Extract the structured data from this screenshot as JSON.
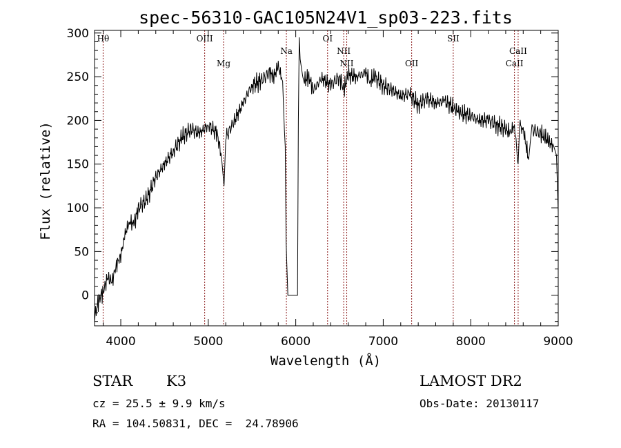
{
  "chart_data": {
    "type": "line",
    "title": "spec-56310-GAC105N24V1_sp03-223.fits",
    "xlabel": "Wavelength (Å)",
    "ylabel": "Flux (relative)",
    "xlim": [
      3700,
      9000
    ],
    "ylim": [
      -35,
      303
    ],
    "x_ticks": [
      "4000",
      "5000",
      "6000",
      "7000",
      "8000",
      "9000"
    ],
    "y_ticks": [
      "0",
      "50",
      "100",
      "150",
      "200",
      "250",
      "300"
    ],
    "grid": false,
    "series": [
      {
        "color": "#000000",
        "x": [
          3700,
          3750,
          3800,
          3850,
          3900,
          3950,
          4000,
          4050,
          4100,
          4150,
          4200,
          4300,
          4400,
          4500,
          4600,
          4700,
          4800,
          4900,
          5000,
          5100,
          5150,
          5180,
          5200,
          5300,
          5400,
          5500,
          5600,
          5700,
          5750,
          5800,
          5850,
          5870,
          5880,
          5890,
          5900,
          5910,
          5920,
          5930,
          5950,
          5980,
          6000,
          6020,
          6030,
          6040,
          6050,
          6080,
          6100,
          6150,
          6200,
          6300,
          6400,
          6500,
          6550,
          6600,
          6700,
          6800,
          6850,
          6900,
          7000,
          7100,
          7200,
          7300,
          7400,
          7500,
          7600,
          7700,
          7800,
          7850,
          7900,
          8000,
          8100,
          8200,
          8300,
          8400,
          8450,
          8500,
          8542,
          8560,
          8600,
          8662,
          8700,
          8800,
          8850,
          8900,
          8950,
          8980,
          9000
        ],
        "y": [
          -25,
          -5,
          5,
          20,
          15,
          35,
          45,
          70,
          85,
          80,
          100,
          110,
          135,
          150,
          165,
          180,
          190,
          185,
          195,
          185,
          160,
          125,
          180,
          200,
          220,
          240,
          245,
          255,
          250,
          262,
          245,
          190,
          170,
          60,
          30,
          0,
          0,
          0,
          0,
          0,
          0,
          0,
          200,
          295,
          270,
          250,
          245,
          250,
          235,
          248,
          240,
          250,
          235,
          252,
          250,
          255,
          245,
          250,
          240,
          235,
          228,
          230,
          218,
          225,
          220,
          222,
          215,
          210,
          208,
          205,
          200,
          200,
          195,
          190,
          185,
          195,
          150,
          195,
          190,
          155,
          190,
          185,
          180,
          175,
          170,
          160,
          95
        ]
      }
    ],
    "lines": [
      {
        "label": "Hθ",
        "x": 3798,
        "row": "high"
      },
      {
        "label": "OIII",
        "x": 4959,
        "row": "high"
      },
      {
        "label": "Mg",
        "x": 5175,
        "row": "low"
      },
      {
        "label": "Na",
        "x": 5893,
        "row": "mid"
      },
      {
        "label": "OI",
        "x": 6364,
        "row": "high"
      },
      {
        "label": "NII",
        "x": 6548,
        "row": "mid"
      },
      {
        "label": "NII",
        "x": 6583,
        "row": "low"
      },
      {
        "label": "OII",
        "x": 7325,
        "row": "low"
      },
      {
        "label": "SII",
        "x": 7800,
        "row": "high"
      },
      {
        "label": "CaII",
        "x": 8500,
        "row": "low"
      },
      {
        "label": "CaII",
        "x": 8542,
        "row": "mid"
      }
    ],
    "line_color": "#8b1a1a"
  },
  "info": {
    "object_class": "STAR",
    "subclass": "K3",
    "survey": "LAMOST DR2",
    "redshift": "cz = 25.5 ± 9.9 km/s",
    "obs_date": "Obs-Date: 20130117",
    "coords": "RA = 104.50831, DEC =  24.78906"
  }
}
